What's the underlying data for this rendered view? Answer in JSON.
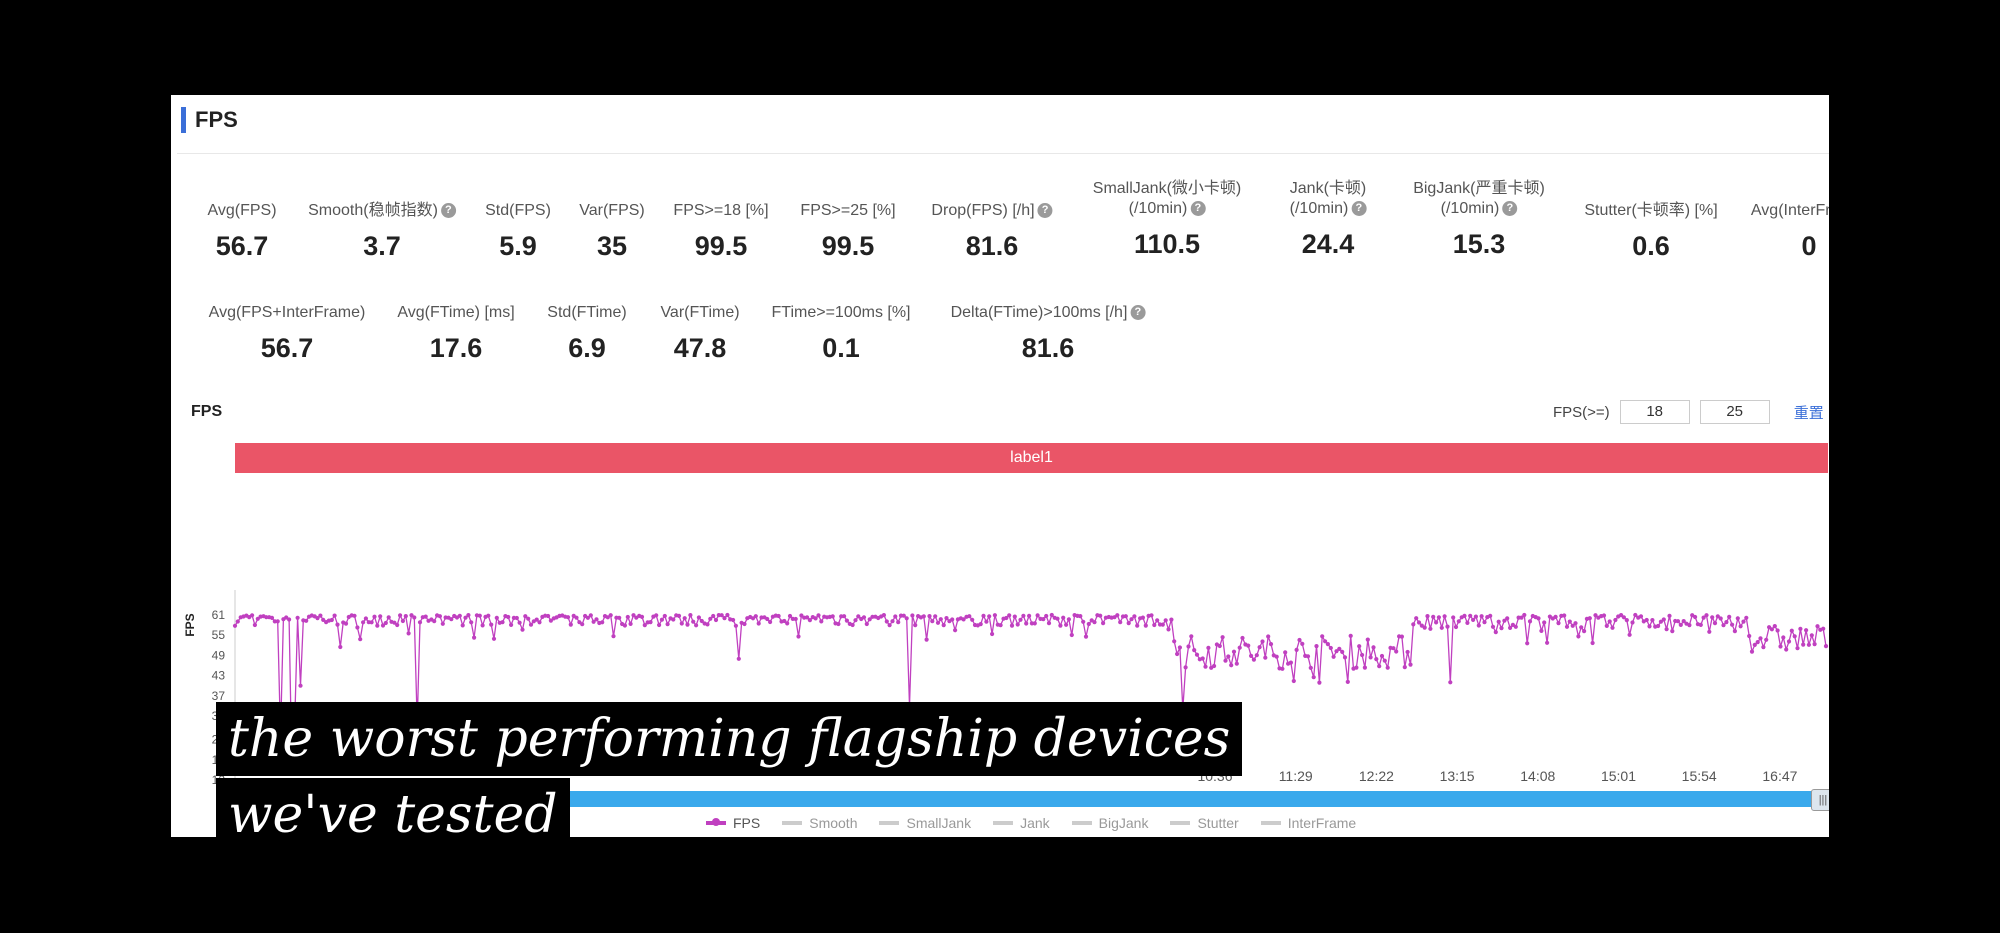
{
  "section": {
    "title": "FPS"
  },
  "metrics_row1": [
    {
      "label": "Avg(FPS)",
      "value": "56.7",
      "help": false
    },
    {
      "label": "Smooth(稳帧指数)",
      "value": "3.7",
      "help": true
    },
    {
      "label": "Std(FPS)",
      "value": "5.9",
      "help": false
    },
    {
      "label": "Var(FPS)",
      "value": "35",
      "help": false
    },
    {
      "label": "FPS>=18 [%]",
      "value": "99.5",
      "help": false
    },
    {
      "label": "FPS>=25 [%]",
      "value": "99.5",
      "help": false
    },
    {
      "label": "Drop(FPS) [/h]",
      "value": "81.6",
      "help": true
    },
    {
      "label": "SmallJank(微小卡顿)",
      "label2": "(/10min)",
      "value": "110.5",
      "help": true
    },
    {
      "label": "Jank(卡顿)",
      "label2": "(/10min)",
      "value": "24.4",
      "help": true
    },
    {
      "label": "BigJank(严重卡顿)",
      "label2": "(/10min)",
      "value": "15.3",
      "help": true
    },
    {
      "label": "Stutter(卡顿率) [%]",
      "value": "0.6",
      "help": false
    },
    {
      "label": "Avg(InterFrame)",
      "value": "0",
      "help": false
    }
  ],
  "metrics_row2": [
    {
      "label": "Avg(FPS+InterFrame)",
      "value": "56.7",
      "help": false
    },
    {
      "label": "Avg(FTime) [ms]",
      "value": "17.6",
      "help": false
    },
    {
      "label": "Std(FTime)",
      "value": "6.9",
      "help": false
    },
    {
      "label": "Var(FTime)",
      "value": "47.8",
      "help": false
    },
    {
      "label": "FTime>=100ms [%]",
      "value": "0.1",
      "help": false
    },
    {
      "label": "Delta(FTime)>100ms [/h]",
      "value": "81.6",
      "help": true
    }
  ],
  "chart_header": {
    "title": "FPS",
    "filter_label": "FPS(>=)",
    "filter_values": [
      "18",
      "25"
    ],
    "reset_label": "重置",
    "band_label": "label1"
  },
  "legend": [
    "FPS",
    "Smooth",
    "SmallJank",
    "Jank",
    "BigJank",
    "Stutter",
    "InterFrame"
  ],
  "captions": [
    "the worst performing flagship devices",
    "we've tested"
  ],
  "colors": {
    "accent": "#3b6fd8",
    "band": "#ea5567",
    "series": "#c040c0",
    "slider": "#3aa9ec"
  },
  "chart_data": {
    "type": "line",
    "ylabel": "FPS",
    "y_ticks": [
      61,
      55,
      49,
      43,
      37,
      31,
      24,
      18,
      12
    ],
    "x_tick_labels": [
      "10:36",
      "11:29",
      "12:22",
      "13:15",
      "14:08",
      "15:01",
      "15:54",
      "16:47"
    ],
    "series": [
      {
        "name": "FPS",
        "segments": [
          {
            "from": 0.0,
            "to": 0.59,
            "base": 60,
            "noise": 2.2,
            "dips": 0.08,
            "dipDepth": 7
          },
          {
            "from": 0.59,
            "to": 0.74,
            "base": 50,
            "noise": 5,
            "dips": 0.05,
            "dipDepth": 6
          },
          {
            "from": 0.74,
            "to": 0.95,
            "base": 59.5,
            "noise": 2.5,
            "dips": 0.08,
            "dipDepth": 7
          },
          {
            "from": 0.95,
            "to": 1.0,
            "base": 54,
            "noise": 4,
            "dips": 0.05,
            "dipDepth": 5
          }
        ],
        "spikes": [
          {
            "at": 0.028,
            "value": 25
          },
          {
            "at": 0.035,
            "value": 15
          },
          {
            "at": 0.038,
            "value": 30
          },
          {
            "at": 0.042,
            "value": 40
          },
          {
            "at": 0.114,
            "value": 29
          },
          {
            "at": 0.316,
            "value": 48
          },
          {
            "at": 0.424,
            "value": 34
          },
          {
            "at": 0.596,
            "value": 33
          },
          {
            "at": 0.764,
            "value": 41
          }
        ]
      }
    ]
  }
}
